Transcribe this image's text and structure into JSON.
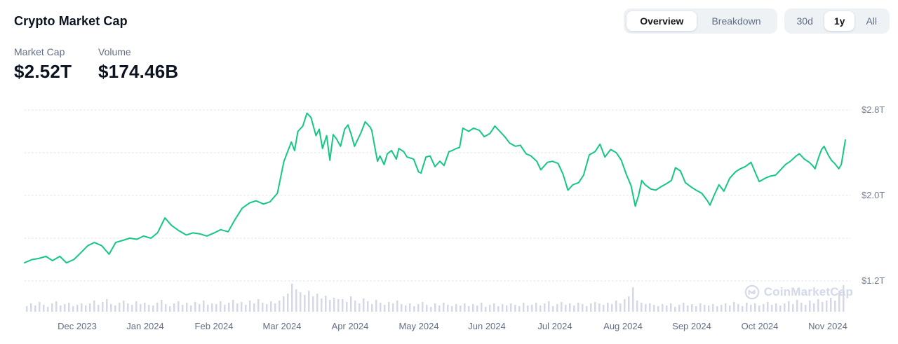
{
  "header": {
    "title": "Crypto Market Cap"
  },
  "stats": [
    {
      "label": "Market Cap",
      "value": "$2.52T"
    },
    {
      "label": "Volume",
      "value": "$174.46B"
    }
  ],
  "view_toggle": {
    "options": [
      {
        "label": "Overview",
        "selected": true
      },
      {
        "label": "Breakdown",
        "selected": false
      }
    ]
  },
  "range_toggle": {
    "options": [
      {
        "label": "30d",
        "selected": false
      },
      {
        "label": "1y",
        "selected": true
      },
      {
        "label": "All",
        "selected": false
      }
    ]
  },
  "watermark": {
    "text": "CoinMarketCap",
    "logo": "coinmarketcap-m-in-circle"
  },
  "colors": {
    "line": "#16c784",
    "volume_bar": "#d3d9e8",
    "grid": "#e4e7f0",
    "text_primary": "#0d1421",
    "text_secondary": "#616e85",
    "axis_label": "#747e94",
    "control_bg": "#eff2f5",
    "watermark": "#d3d9e8"
  },
  "chart_data": {
    "type": "line",
    "title": "Crypto Market Cap",
    "x_domain": "Nov 2023 - Nov 2024 (1y view)",
    "y_unit": "USD trillions",
    "ylim": [
      1.05,
      2.9
    ],
    "grid": "horizontal dotted",
    "legend": "none",
    "current_value": "$2.52T",
    "x_axis_labels": [
      "Dec 2023",
      "Jan 2024",
      "Feb 2024",
      "Mar 2024",
      "Apr 2024",
      "May 2024",
      "Jun 2024",
      "Jul 2024",
      "Aug 2024",
      "Sep 2024",
      "Oct 2024",
      "Nov 2024"
    ],
    "y_axis_labels": [
      {
        "text": "$2.8T",
        "value": 2.8
      },
      {
        "text": "$2.0T",
        "value": 2.0
      },
      {
        "text": "$1.2T",
        "value": 1.2
      }
    ],
    "y_gridline_values": [
      2.8,
      2.4,
      2.0,
      1.6,
      1.2
    ],
    "series": [
      {
        "name": "Market Cap (trillions USD, x = % of 1y range)",
        "points": [
          [
            0,
            1.37
          ],
          [
            0.9,
            1.4
          ],
          [
            1.7,
            1.41
          ],
          [
            2.6,
            1.43
          ],
          [
            3.4,
            1.39
          ],
          [
            4.3,
            1.43
          ],
          [
            5.1,
            1.37
          ],
          [
            6,
            1.4
          ],
          [
            6.8,
            1.46
          ],
          [
            7.7,
            1.53
          ],
          [
            8.5,
            1.56
          ],
          [
            9.4,
            1.53
          ],
          [
            10.3,
            1.45
          ],
          [
            11.1,
            1.56
          ],
          [
            12,
            1.58
          ],
          [
            12.8,
            1.6
          ],
          [
            13.7,
            1.59
          ],
          [
            14.5,
            1.62
          ],
          [
            15.4,
            1.6
          ],
          [
            16.2,
            1.65
          ],
          [
            17.1,
            1.79
          ],
          [
            17.9,
            1.72
          ],
          [
            18.8,
            1.67
          ],
          [
            19.7,
            1.63
          ],
          [
            20.5,
            1.65
          ],
          [
            21.4,
            1.64
          ],
          [
            22.2,
            1.62
          ],
          [
            23.1,
            1.65
          ],
          [
            23.9,
            1.68
          ],
          [
            24.8,
            1.66
          ],
          [
            25.6,
            1.77
          ],
          [
            26.5,
            1.88
          ],
          [
            27.4,
            1.93
          ],
          [
            28.2,
            1.95
          ],
          [
            29.1,
            1.92
          ],
          [
            29.9,
            1.94
          ],
          [
            30.8,
            2.02
          ],
          [
            31.6,
            2.32
          ],
          [
            32.5,
            2.5
          ],
          [
            32.9,
            2.42
          ],
          [
            33.3,
            2.6
          ],
          [
            33.9,
            2.65
          ],
          [
            34.4,
            2.77
          ],
          [
            34.9,
            2.73
          ],
          [
            35.5,
            2.56
          ],
          [
            35.9,
            2.62
          ],
          [
            36.3,
            2.44
          ],
          [
            36.8,
            2.56
          ],
          [
            37.2,
            2.33
          ],
          [
            37.6,
            2.57
          ],
          [
            38,
            2.53
          ],
          [
            38.5,
            2.46
          ],
          [
            39,
            2.62
          ],
          [
            39.4,
            2.66
          ],
          [
            39.8,
            2.57
          ],
          [
            40.2,
            2.46
          ],
          [
            40.5,
            2.51
          ],
          [
            41,
            2.59
          ],
          [
            41.5,
            2.69
          ],
          [
            42.1,
            2.64
          ],
          [
            42.3,
            2.61
          ],
          [
            42.7,
            2.44
          ],
          [
            43,
            2.32
          ],
          [
            43.3,
            2.37
          ],
          [
            43.8,
            2.29
          ],
          [
            44.2,
            2.39
          ],
          [
            44.7,
            2.42
          ],
          [
            45.3,
            2.34
          ],
          [
            45.6,
            2.44
          ],
          [
            46.2,
            2.41
          ],
          [
            46.6,
            2.36
          ],
          [
            47.4,
            2.34
          ],
          [
            48,
            2.22
          ],
          [
            48.3,
            2.21
          ],
          [
            48.9,
            2.36
          ],
          [
            49.4,
            2.37
          ],
          [
            50,
            2.27
          ],
          [
            50.6,
            2.32
          ],
          [
            51.1,
            2.28
          ],
          [
            51.7,
            2.41
          ],
          [
            52.1,
            2.42
          ],
          [
            52.6,
            2.44
          ],
          [
            53,
            2.45
          ],
          [
            53.4,
            2.63
          ],
          [
            54.1,
            2.6
          ],
          [
            54.7,
            2.63
          ],
          [
            55.4,
            2.61
          ],
          [
            56,
            2.55
          ],
          [
            56.7,
            2.58
          ],
          [
            57.3,
            2.65
          ],
          [
            57.9,
            2.6
          ],
          [
            58.5,
            2.55
          ],
          [
            59.1,
            2.49
          ],
          [
            59.8,
            2.46
          ],
          [
            60.4,
            2.47
          ],
          [
            61.1,
            2.39
          ],
          [
            61.7,
            2.37
          ],
          [
            62.4,
            2.32
          ],
          [
            62.9,
            2.24
          ],
          [
            63.7,
            2.31
          ],
          [
            64.3,
            2.32
          ],
          [
            65,
            2.3
          ],
          [
            65.6,
            2.2
          ],
          [
            66.2,
            2.05
          ],
          [
            66.8,
            2.1
          ],
          [
            67.5,
            2.12
          ],
          [
            68.1,
            2.19
          ],
          [
            68.8,
            2.38
          ],
          [
            69.5,
            2.41
          ],
          [
            70.1,
            2.48
          ],
          [
            70.7,
            2.36
          ],
          [
            71.4,
            2.43
          ],
          [
            72.1,
            2.4
          ],
          [
            72.7,
            2.33
          ],
          [
            73.3,
            2.2
          ],
          [
            73.9,
            2.09
          ],
          [
            74.4,
            1.9
          ],
          [
            74.8,
            2
          ],
          [
            75.2,
            2.14
          ],
          [
            75.6,
            2.1
          ],
          [
            76.3,
            2.06
          ],
          [
            76.9,
            2.05
          ],
          [
            77.5,
            2.08
          ],
          [
            78.2,
            2.11
          ],
          [
            78.8,
            2.14
          ],
          [
            79.3,
            2.26
          ],
          [
            79.9,
            2.23
          ],
          [
            80.5,
            2.12
          ],
          [
            81.2,
            2.08
          ],
          [
            81.8,
            2.05
          ],
          [
            82.5,
            2.02
          ],
          [
            83.2,
            1.95
          ],
          [
            83.5,
            1.91
          ],
          [
            84,
            2
          ],
          [
            84.6,
            2.1
          ],
          [
            85.2,
            2.04
          ],
          [
            85.9,
            2.16
          ],
          [
            86.6,
            2.22
          ],
          [
            87.2,
            2.25
          ],
          [
            87.8,
            2.27
          ],
          [
            88.5,
            2.31
          ],
          [
            89.1,
            2.2
          ],
          [
            89.5,
            2.13
          ],
          [
            90.2,
            2.16
          ],
          [
            90.8,
            2.18
          ],
          [
            91.5,
            2.19
          ],
          [
            92.1,
            2.24
          ],
          [
            92.7,
            2.29
          ],
          [
            93.3,
            2.32
          ],
          [
            94,
            2.37
          ],
          [
            94.4,
            2.39
          ],
          [
            95,
            2.34
          ],
          [
            95.6,
            2.31
          ],
          [
            96,
            2.28
          ],
          [
            96.3,
            2.25
          ],
          [
            96.8,
            2.37
          ],
          [
            97.1,
            2.43
          ],
          [
            97.4,
            2.46
          ],
          [
            97.9,
            2.38
          ],
          [
            98.3,
            2.33
          ],
          [
            98.7,
            2.3
          ],
          [
            99.2,
            2.25
          ],
          [
            99.5,
            2.29
          ],
          [
            100,
            2.52
          ]
        ]
      }
    ],
    "volume_bars": [
      8,
      12,
      9,
      14,
      10,
      7,
      12,
      15,
      9,
      11,
      13,
      8,
      10,
      12,
      9,
      12,
      16,
      10,
      14,
      18,
      11,
      9,
      13,
      16,
      12,
      10,
      15,
      11,
      13,
      10,
      9,
      13,
      17,
      11,
      8,
      12,
      15,
      10,
      13,
      9,
      14,
      11,
      16,
      10,
      12,
      11,
      15,
      10,
      13,
      17,
      12,
      14,
      10,
      16,
      12,
      18,
      13,
      11,
      15,
      12,
      16,
      22,
      26,
      40,
      32,
      28,
      24,
      30,
      22,
      26,
      19,
      23,
      17,
      20,
      18,
      18,
      14,
      22,
      16,
      12,
      19,
      15,
      11,
      17,
      13,
      10,
      14,
      12,
      16,
      11,
      9,
      12,
      8,
      11,
      14,
      10,
      7,
      12,
      9,
      13,
      10,
      8,
      11,
      9,
      12,
      8,
      11,
      9,
      13,
      7,
      10,
      12,
      8,
      11,
      9,
      12,
      10,
      8,
      13,
      9,
      10,
      13,
      9,
      12,
      15,
      8,
      11,
      14,
      10,
      12,
      9,
      13,
      11,
      8,
      12,
      14,
      12,
      10,
      13,
      11,
      16,
      12,
      18,
      22,
      35,
      16,
      13,
      11,
      12,
      10,
      8,
      11,
      9,
      12,
      7,
      10,
      13,
      9,
      11,
      8,
      12,
      10,
      9,
      11,
      8,
      10,
      12,
      9,
      14,
      11,
      8,
      13,
      10,
      12,
      9,
      11,
      14,
      10,
      12,
      9,
      12,
      15,
      11,
      17,
      13,
      10,
      16,
      12,
      18,
      14,
      16,
      20,
      16,
      30,
      38
    ]
  }
}
